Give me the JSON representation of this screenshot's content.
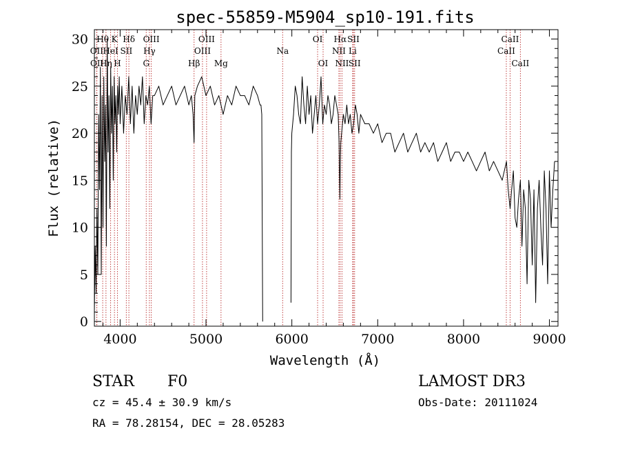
{
  "chart_data": {
    "type": "line",
    "title": "spec-55859-M5904_sp10-191.fits",
    "xlabel": "Wavelength (Å)",
    "ylabel": "Flux (relative)",
    "xlim": [
      3700,
      9100
    ],
    "ylim": [
      -0.5,
      31
    ],
    "xticks": [
      4000,
      5000,
      6000,
      7000,
      8000,
      9000
    ],
    "yticks": [
      0,
      5,
      10,
      15,
      20,
      25,
      30
    ],
    "series": [
      {
        "name": "flux",
        "segments": [
          {
            "x": [
              3700,
              3710,
              3720,
              3730,
              3740,
              3750,
              3760,
              3770,
              3780,
              3790,
              3800,
              3810,
              3820,
              3830,
              3840,
              3850,
              3860,
              3870,
              3880,
              3890,
              3900,
              3910,
              3920,
              3930,
              3940,
              3950,
              3960,
              3970,
              3980,
              3990,
              4000,
              4020,
              4040,
              4060,
              4080,
              4100,
              4120,
              4140,
              4160,
              4180,
              4200,
              4220,
              4240,
              4260,
              4280,
              4300,
              4320,
              4340,
              4360,
              4380,
              4400,
              4450,
              4500,
              4550,
              4600,
              4650,
              4700,
              4750,
              4800,
              4830,
              4850,
              4861,
              4870,
              4900,
              4950,
              5000,
              5050,
              5100,
              5150,
              5200,
              5250,
              5300,
              5350,
              5400,
              5450,
              5500,
              5550,
              5600,
              5630,
              5640,
              5650,
              5660
            ],
            "y": [
              1,
              8,
              3,
              12,
              5,
              22,
              14,
              27,
              5,
              24,
              10,
              26,
              17,
              23,
              8,
              30,
              18,
              24,
              12,
              27,
              20,
              25,
              15,
              26,
              21,
              24,
              18,
              25,
              22,
              26,
              21,
              25,
              20,
              24,
              22,
              26,
              21,
              25,
              20,
              24,
              22,
              25,
              23,
              26,
              21,
              24,
              23,
              25,
              21,
              24,
              24,
              25,
              23,
              24,
              25,
              23,
              24,
              25,
              23,
              24,
              22,
              19,
              24,
              25,
              26,
              24,
              25,
              23,
              24,
              22,
              24,
              23,
              25,
              24,
              24,
              23,
              25,
              24,
              23,
              23,
              22,
              0
            ]
          },
          {
            "x": [
              5990,
              5995,
              6000,
              6020,
              6040,
              6060,
              6080,
              6100,
              6120,
              6140,
              6160,
              6180,
              6200,
              6220,
              6240,
              6260,
              6280,
              6300,
              6320,
              6340,
              6360,
              6380,
              6400,
              6420,
              6440,
              6460,
              6480,
              6500,
              6520,
              6540,
              6550,
              6560,
              6563,
              6570,
              6580,
              6600,
              6620,
              6640,
              6660,
              6680,
              6700,
              6720,
              6740,
              6760,
              6780,
              6800,
              6850,
              6900,
              6950,
              7000,
              7050,
              7100,
              7150,
              7200,
              7250,
              7300,
              7350,
              7400,
              7450,
              7500,
              7550,
              7600,
              7650,
              7700,
              7750,
              7800,
              7850,
              7900,
              7950,
              8000,
              8050,
              8100,
              8150,
              8200,
              8250,
              8300,
              8350,
              8400,
              8450,
              8500,
              8520,
              8542,
              8560,
              8580,
              8600,
              8620,
              8640,
              8662,
              8680,
              8700,
              8720,
              8740,
              8760,
              8780,
              8800,
              8820,
              8840,
              8860,
              8880,
              8900,
              8920,
              8940,
              8960,
              8980,
              9000,
              9020,
              9040,
              9060
            ],
            "y": [
              2,
              18,
              20,
              22,
              25,
              24,
              22,
              21,
              26,
              23,
              21,
              25,
              22,
              24,
              20,
              22,
              24,
              21,
              23,
              26,
              21,
              23,
              22,
              24,
              23,
              21,
              22,
              24,
              23,
              22,
              19,
              13,
              16,
              19,
              20,
              22,
              21,
              23,
              21,
              22,
              20,
              21,
              23,
              22,
              20,
              22,
              21,
              21,
              20,
              21,
              19,
              20,
              20,
              18,
              19,
              20,
              18,
              19,
              20,
              18,
              19,
              18,
              19,
              17,
              18,
              19,
              17,
              18,
              18,
              17,
              18,
              17,
              16,
              17,
              18,
              16,
              17,
              16,
              15,
              17,
              14,
              12,
              14,
              16,
              11,
              10,
              13,
              15,
              8,
              14,
              12,
              4,
              15,
              13,
              6,
              14,
              2,
              12,
              15,
              10,
              6,
              16,
              12,
              4,
              16,
              10,
              14,
              17
            ]
          }
        ]
      }
    ],
    "lines": [
      {
        "label": "Hθ",
        "x": 3797,
        "row": 1,
        "color": "#c04040"
      },
      {
        "label": "OII",
        "x": 3727,
        "row": 2,
        "color": "#c04040"
      },
      {
        "label": "OII",
        "x": 3729,
        "row": 3,
        "color": "#c04040"
      },
      {
        "label": "Hη",
        "x": 3835,
        "row": 3,
        "color": "#c04040"
      },
      {
        "label": "HeI",
        "x": 3889,
        "row": 2,
        "color": "#c04040"
      },
      {
        "label": "K",
        "x": 3934,
        "row": 1,
        "color": "#c04040"
      },
      {
        "label": "H",
        "x": 3969,
        "row": 3,
        "color": "#c04040"
      },
      {
        "label": "SII",
        "x": 4072,
        "row": 2,
        "color": "#c04040"
      },
      {
        "label": "Hδ",
        "x": 4102,
        "row": 1,
        "color": "#c04040"
      },
      {
        "label": "OIII",
        "x": 4363,
        "row": 1,
        "color": "#c04040"
      },
      {
        "label": "Hγ",
        "x": 4341,
        "row": 2,
        "color": "#c04040"
      },
      {
        "label": "G",
        "x": 4304,
        "row": 3,
        "color": "#c04040"
      },
      {
        "label": "Hβ",
        "x": 4861,
        "row": 3,
        "color": "#c04040"
      },
      {
        "label": "OIII",
        "x": 4959,
        "row": 2,
        "color": "#c04040"
      },
      {
        "label": "OIII",
        "x": 5007,
        "row": 1,
        "color": "#c04040"
      },
      {
        "label": "Mg",
        "x": 5175,
        "row": 3,
        "color": "#c04040"
      },
      {
        "label": "Na",
        "x": 5893,
        "row": 2,
        "color": "#c04040"
      },
      {
        "label": "OI",
        "x": 6300,
        "row": 1,
        "color": "#c04040"
      },
      {
        "label": "OI",
        "x": 6364,
        "row": 3,
        "color": "#c04040"
      },
      {
        "label": "Hα",
        "x": 6563,
        "row": 1,
        "color": "#c04040"
      },
      {
        "label": "NII",
        "x": 6548,
        "row": 2,
        "color": "#c04040"
      },
      {
        "label": "NII",
        "x": 6584,
        "row": 3,
        "color": "#c04040"
      },
      {
        "label": "SII",
        "x": 6717,
        "row": 1,
        "color": "#c04040"
      },
      {
        "label": "Li",
        "x": 6708,
        "row": 2,
        "color": "#c04040"
      },
      {
        "label": "SII",
        "x": 6731,
        "row": 3,
        "color": "#c04040"
      },
      {
        "label": "CaII",
        "x": 8498,
        "row": 2,
        "color": "#c04040"
      },
      {
        "label": "CaII",
        "x": 8542,
        "row": 1,
        "color": "#c04040"
      },
      {
        "label": "CaII",
        "x": 8662,
        "row": 3,
        "color": "#c04040"
      }
    ]
  },
  "info": {
    "class_label": "STAR",
    "subclass": "F0",
    "survey": "LAMOST DR3",
    "cz_text": "cz = 45.4 ± 30.9 km/s",
    "obs_date": "Obs-Date: 20111024",
    "radec_text": "RA =  78.28154, DEC =  28.05283"
  }
}
